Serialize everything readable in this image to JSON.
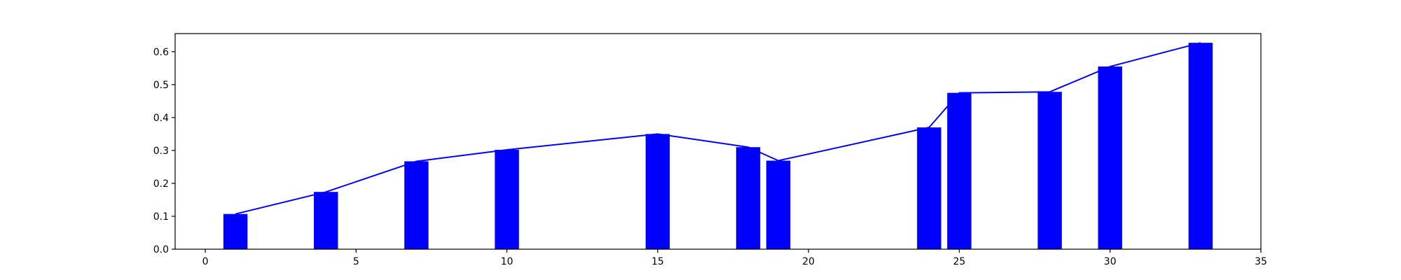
{
  "chart_data": {
    "type": "bar",
    "title": "",
    "xlabel": "",
    "ylabel": "",
    "xlim": [
      -1,
      35
    ],
    "ylim": [
      0,
      0.655
    ],
    "grid": false,
    "colors": {
      "bar": "#0000ff",
      "line": "#0000ff"
    },
    "x": [
      1,
      4,
      7,
      10,
      15,
      18,
      19,
      24,
      25,
      28,
      30,
      33
    ],
    "series": [
      {
        "type": "bar",
        "values": [
          0.107,
          0.174,
          0.267,
          0.302,
          0.35,
          0.31,
          0.269,
          0.37,
          0.475,
          0.478,
          0.555,
          0.627
        ]
      },
      {
        "type": "line",
        "values": [
          0.107,
          0.174,
          0.267,
          0.302,
          0.35,
          0.31,
          0.269,
          0.37,
          0.475,
          0.478,
          0.555,
          0.627
        ]
      }
    ],
    "xticks": [
      0,
      5,
      10,
      15,
      20,
      25,
      30,
      35
    ],
    "yticks": [
      0.0,
      0.1,
      0.2,
      0.3,
      0.4,
      0.5,
      0.6
    ],
    "xtick_labels": [
      "0",
      "5",
      "10",
      "15",
      "20",
      "25",
      "30",
      "35"
    ],
    "ytick_labels": [
      "0.0",
      "0.1",
      "0.2",
      "0.3",
      "0.4",
      "0.5",
      "0.6"
    ]
  }
}
